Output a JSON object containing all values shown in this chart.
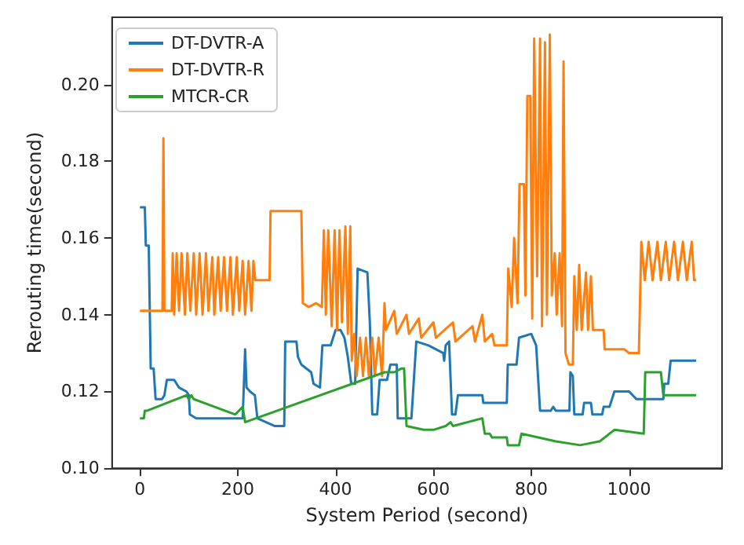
{
  "chart_data": {
    "type": "line",
    "xlabel": "System Period (second)",
    "ylabel": "Rerouting time(second)",
    "xlim": [
      -57,
      1190
    ],
    "ylim": [
      0.1,
      0.2175
    ],
    "xticks": [
      0,
      200,
      400,
      600,
      800,
      1000
    ],
    "yticks": [
      {
        "value": 0.1,
        "label": "0.10"
      },
      {
        "value": 0.12,
        "label": "0.12"
      },
      {
        "value": 0.14,
        "label": "0.14"
      },
      {
        "value": 0.16,
        "label": "0.16"
      },
      {
        "value": 0.18,
        "label": "0.18"
      },
      {
        "value": 0.2,
        "label": "0.20"
      }
    ],
    "grid": false,
    "legend": "top left",
    "marker": "none",
    "line_style": "solid",
    "series": [
      {
        "name": "DT-DVTR-A",
        "color": "#1f77b4",
        "x": [
          0,
          10,
          12,
          18,
          20,
          22,
          28,
          32,
          45,
          50,
          55,
          70,
          80,
          95,
          100,
          102,
          115,
          210,
          212,
          215,
          218,
          225,
          235,
          240,
          275,
          295,
          297,
          320,
          323,
          330,
          350,
          355,
          368,
          373,
          390,
          400,
          410,
          418,
          425,
          432,
          440,
          445,
          465,
          470,
          475,
          485,
          490,
          505,
          512,
          525,
          527,
          555,
          565,
          590,
          620,
          622,
          625,
          632,
          638,
          645,
          650,
          700,
          702,
          750,
          752,
          770,
          775,
          800,
          810,
          818,
          840,
          845,
          850,
          878,
          880,
          885,
          888,
          905,
          908,
          922,
          925,
          945,
          948,
          960,
          970,
          1000,
          1015,
          1070,
          1072,
          1080,
          1085,
          1125,
          1130,
          1137
        ],
        "values": [
          0.168,
          0.168,
          0.158,
          0.158,
          0.142,
          0.126,
          0.126,
          0.118,
          0.118,
          0.119,
          0.123,
          0.123,
          0.121,
          0.12,
          0.119,
          0.114,
          0.113,
          0.113,
          0.12,
          0.131,
          0.121,
          0.12,
          0.119,
          0.113,
          0.111,
          0.111,
          0.133,
          0.133,
          0.129,
          0.127,
          0.125,
          0.122,
          0.121,
          0.132,
          0.132,
          0.136,
          0.136,
          0.134,
          0.129,
          0.122,
          0.122,
          0.152,
          0.151,
          0.138,
          0.114,
          0.114,
          0.123,
          0.123,
          0.127,
          0.127,
          0.113,
          0.113,
          0.133,
          0.132,
          0.13,
          0.128,
          0.132,
          0.133,
          0.114,
          0.114,
          0.119,
          0.119,
          0.117,
          0.117,
          0.127,
          0.127,
          0.134,
          0.135,
          0.132,
          0.115,
          0.115,
          0.116,
          0.115,
          0.115,
          0.125,
          0.124,
          0.114,
          0.114,
          0.117,
          0.117,
          0.114,
          0.114,
          0.116,
          0.116,
          0.12,
          0.12,
          0.118,
          0.118,
          0.122,
          0.122,
          0.128,
          0.128,
          0.128,
          0.128
        ]
      },
      {
        "name": "DT-DVTR-R",
        "color": "#ff7f0e",
        "x": [
          0,
          46,
          48,
          50,
          65,
          67,
          70,
          75,
          80,
          85,
          92,
          97,
          103,
          110,
          115,
          122,
          128,
          135,
          140,
          148,
          152,
          160,
          165,
          172,
          178,
          185,
          190,
          198,
          203,
          210,
          215,
          222,
          228,
          232,
          236,
          265,
          267,
          330,
          333,
          345,
          360,
          372,
          376,
          380,
          385,
          392,
          398,
          403,
          408,
          413,
          420,
          425,
          430,
          433,
          438,
          443,
          450,
          456,
          462,
          468,
          475,
          480,
          488,
          495,
          500,
          503,
          520,
          525,
          545,
          550,
          570,
          575,
          600,
          605,
          640,
          645,
          680,
          685,
          700,
          705,
          720,
          725,
          750,
          753,
          760,
          765,
          772,
          776,
          785,
          788,
          792,
          798,
          802,
          806,
          812,
          818,
          822,
          828,
          832,
          838,
          842,
          848,
          852,
          858,
          863,
          866,
          870,
          877,
          885,
          888,
          893,
          898,
          903,
          912,
          916,
          922,
          926,
          948,
          950,
          990,
          1000,
          1020,
          1025,
          1032,
          1040,
          1048,
          1058,
          1065,
          1075,
          1082,
          1092,
          1100,
          1110,
          1118,
          1128,
          1133,
          1137
        ],
        "values": [
          0.141,
          0.141,
          0.186,
          0.141,
          0.141,
          0.156,
          0.14,
          0.156,
          0.141,
          0.156,
          0.14,
          0.156,
          0.141,
          0.156,
          0.14,
          0.156,
          0.14,
          0.156,
          0.141,
          0.155,
          0.14,
          0.155,
          0.141,
          0.155,
          0.141,
          0.155,
          0.14,
          0.155,
          0.141,
          0.154,
          0.14,
          0.154,
          0.141,
          0.154,
          0.149,
          0.149,
          0.167,
          0.167,
          0.143,
          0.142,
          0.143,
          0.142,
          0.162,
          0.14,
          0.162,
          0.137,
          0.162,
          0.136,
          0.162,
          0.138,
          0.163,
          0.135,
          0.163,
          0.128,
          0.135,
          0.124,
          0.134,
          0.124,
          0.134,
          0.124,
          0.134,
          0.124,
          0.134,
          0.124,
          0.143,
          0.136,
          0.141,
          0.135,
          0.14,
          0.135,
          0.139,
          0.134,
          0.138,
          0.134,
          0.138,
          0.133,
          0.137,
          0.133,
          0.14,
          0.133,
          0.135,
          0.132,
          0.132,
          0.152,
          0.142,
          0.16,
          0.143,
          0.174,
          0.174,
          0.145,
          0.197,
          0.197,
          0.139,
          0.212,
          0.15,
          0.212,
          0.137,
          0.211,
          0.14,
          0.213,
          0.145,
          0.156,
          0.14,
          0.156,
          0.137,
          0.206,
          0.13,
          0.127,
          0.127,
          0.15,
          0.136,
          0.153,
          0.136,
          0.151,
          0.136,
          0.15,
          0.136,
          0.136,
          0.131,
          0.131,
          0.13,
          0.13,
          0.159,
          0.149,
          0.159,
          0.149,
          0.159,
          0.149,
          0.159,
          0.149,
          0.159,
          0.149,
          0.159,
          0.149,
          0.159,
          0.149,
          0.149
        ]
      },
      {
        "name": "MTCR-CR",
        "color": "#2ca02c",
        "x": [
          0,
          8,
          10,
          15,
          95,
          100,
          105,
          110,
          195,
          210,
          215,
          500,
          520,
          535,
          540,
          545,
          580,
          600,
          625,
          635,
          640,
          700,
          705,
          715,
          720,
          750,
          752,
          775,
          780,
          850,
          900,
          940,
          970,
          1030,
          1033,
          1065,
          1070,
          1137
        ],
        "values": [
          0.113,
          0.113,
          0.115,
          0.115,
          0.119,
          0.118,
          0.119,
          0.118,
          0.114,
          0.116,
          0.112,
          0.125,
          0.125,
          0.126,
          0.126,
          0.111,
          0.11,
          0.11,
          0.111,
          0.112,
          0.111,
          0.113,
          0.109,
          0.109,
          0.108,
          0.108,
          0.106,
          0.106,
          0.109,
          0.107,
          0.106,
          0.107,
          0.11,
          0.109,
          0.125,
          0.125,
          0.119,
          0.119
        ]
      }
    ]
  }
}
